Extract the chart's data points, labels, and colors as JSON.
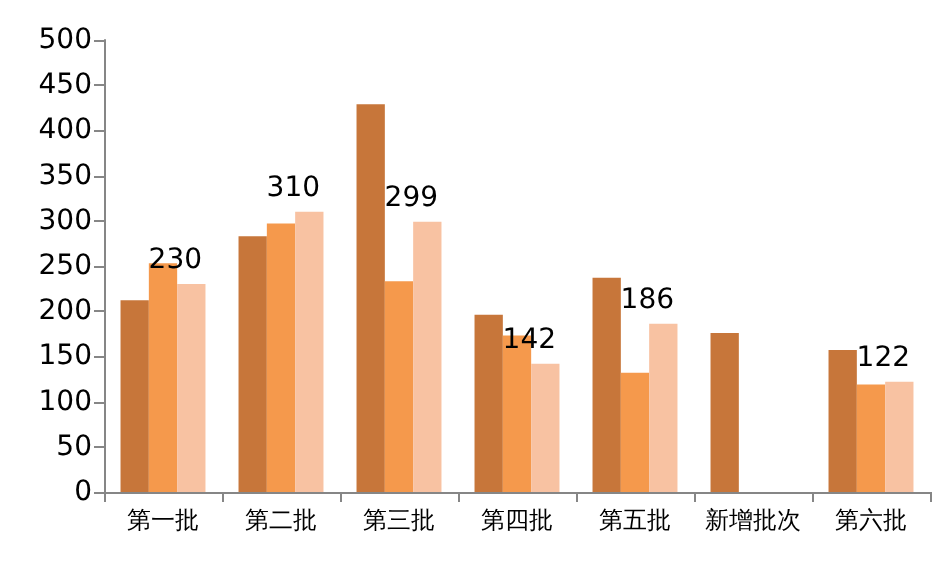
{
  "chart_data": {
    "type": "bar",
    "categories": [
      "第一批",
      "第二批",
      "第三批",
      "第四批",
      "第五批",
      "新增批次",
      "第六批"
    ],
    "series": [
      {
        "color": "#c7763a",
        "values": [
          212,
          283,
          429,
          196,
          237,
          176,
          157
        ]
      },
      {
        "color": "#f5994c",
        "values": [
          253,
          297,
          233,
          173,
          132,
          null,
          119
        ]
      },
      {
        "color": "#f8c2a2",
        "values": [
          230,
          310,
          299,
          142,
          186,
          null,
          122
        ],
        "value_labels": [
          "230",
          "310",
          "299",
          "142",
          "186",
          null,
          "122"
        ]
      }
    ],
    "ylim": [
      0,
      500
    ],
    "yticks": [
      0,
      50,
      100,
      150,
      200,
      250,
      300,
      350,
      400,
      450,
      500
    ],
    "grid": false
  }
}
